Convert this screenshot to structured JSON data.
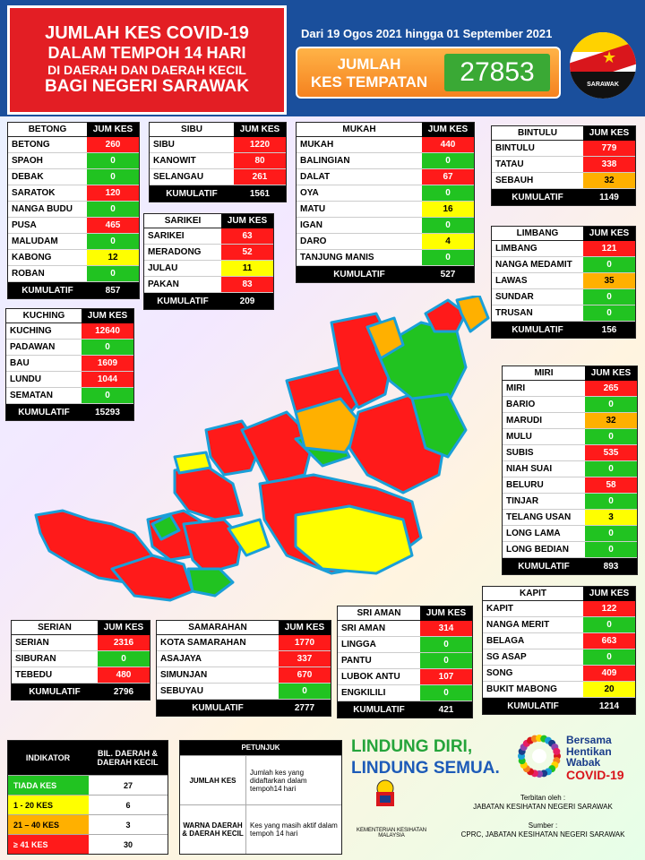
{
  "header": {
    "title_lines": [
      "JUMLAH KES COVID-19",
      "DALAM TEMPOH 14 HARI",
      "DI DAERAH DAN DAERAH KECIL",
      "BAGI NEGERI SARAWAK"
    ],
    "date_range": "Dari 19 Ogos 2021 hingga 01 September 2021",
    "jumlah_label_1": "JUMLAH",
    "jumlah_label_2": "KES TEMPATAN",
    "jumlah_value": "27853",
    "flag_label": "SARAWAK"
  },
  "tables": {
    "betong": {
      "title": "BETONG",
      "col": "JUM KES",
      "rows": [
        {
          "name": "BETONG",
          "value": "260",
          "color": "red"
        },
        {
          "name": "SPAOH",
          "value": "0",
          "color": "green"
        },
        {
          "name": "DEBAK",
          "value": "0",
          "color": "green"
        },
        {
          "name": "SARATOK",
          "value": "120",
          "color": "red"
        },
        {
          "name": "NANGA BUDU",
          "value": "0",
          "color": "green"
        },
        {
          "name": "PUSA",
          "value": "465",
          "color": "red"
        },
        {
          "name": "MALUDAM",
          "value": "0",
          "color": "green"
        },
        {
          "name": "KABONG",
          "value": "12",
          "color": "yellow"
        },
        {
          "name": "ROBAN",
          "value": "0",
          "color": "green"
        }
      ],
      "kum_label": "KUMULATIF",
      "kum": "857"
    },
    "sibu": {
      "title": "SIBU",
      "col": "JUM KES",
      "rows": [
        {
          "name": "SIBU",
          "value": "1220",
          "color": "red"
        },
        {
          "name": "KANOWIT",
          "value": "80",
          "color": "red"
        },
        {
          "name": "SELANGAU",
          "value": "261",
          "color": "red"
        }
      ],
      "kum_label": "KUMULATIF",
      "kum": "1561"
    },
    "mukah": {
      "title": "MUKAH",
      "col": "JUM KES",
      "rows": [
        {
          "name": "MUKAH",
          "value": "440",
          "color": "red"
        },
        {
          "name": "BALINGIAN",
          "value": "0",
          "color": "green"
        },
        {
          "name": "DALAT",
          "value": "67",
          "color": "red"
        },
        {
          "name": "OYA",
          "value": "0",
          "color": "green"
        },
        {
          "name": "MATU",
          "value": "16",
          "color": "yellow"
        },
        {
          "name": "IGAN",
          "value": "0",
          "color": "green"
        },
        {
          "name": "DARO",
          "value": "4",
          "color": "yellow"
        },
        {
          "name": "TANJUNG MANIS",
          "value": "0",
          "color": "green"
        }
      ],
      "kum_label": "KUMULATIF",
      "kum": "527"
    },
    "bintulu": {
      "title": "BINTULU",
      "col": "JUM KES",
      "rows": [
        {
          "name": "BINTULU",
          "value": "779",
          "color": "red"
        },
        {
          "name": "TATAU",
          "value": "338",
          "color": "red"
        },
        {
          "name": "SEBAUH",
          "value": "32",
          "color": "orange"
        }
      ],
      "kum_label": "KUMULATIF",
      "kum": "1149"
    },
    "sarikei": {
      "title": "SARIKEI",
      "col": "JUM KES",
      "rows": [
        {
          "name": "SARIKEI",
          "value": "63",
          "color": "red"
        },
        {
          "name": "MERADONG",
          "value": "52",
          "color": "red"
        },
        {
          "name": "JULAU",
          "value": "11",
          "color": "yellow"
        },
        {
          "name": "PAKAN",
          "value": "83",
          "color": "red"
        }
      ],
      "kum_label": "KUMULATIF",
      "kum": "209"
    },
    "limbang": {
      "title": "LIMBANG",
      "col": "JUM KES",
      "rows": [
        {
          "name": "LIMBANG",
          "value": "121",
          "color": "red"
        },
        {
          "name": "NANGA MEDAMIT",
          "value": "0",
          "color": "green"
        },
        {
          "name": "LAWAS",
          "value": "35",
          "color": "orange"
        },
        {
          "name": "SUNDAR",
          "value": "0",
          "color": "green"
        },
        {
          "name": "TRUSAN",
          "value": "0",
          "color": "green"
        }
      ],
      "kum_label": "KUMULATIF",
      "kum": "156"
    },
    "kuching": {
      "title": "KUCHING",
      "col": "JUM KES",
      "rows": [
        {
          "name": "KUCHING",
          "value": "12640",
          "color": "red"
        },
        {
          "name": "PADAWAN",
          "value": "0",
          "color": "green"
        },
        {
          "name": "BAU",
          "value": "1609",
          "color": "red"
        },
        {
          "name": "LUNDU",
          "value": "1044",
          "color": "red"
        },
        {
          "name": "SEMATAN",
          "value": "0",
          "color": "green"
        }
      ],
      "kum_label": "KUMULATIF",
      "kum": "15293"
    },
    "miri": {
      "title": "MIRI",
      "col": "JUM KES",
      "rows": [
        {
          "name": "MIRI",
          "value": "265",
          "color": "red"
        },
        {
          "name": "BARIO",
          "value": "0",
          "color": "green"
        },
        {
          "name": "MARUDI",
          "value": "32",
          "color": "orange"
        },
        {
          "name": "MULU",
          "value": "0",
          "color": "green"
        },
        {
          "name": "SUBIS",
          "value": "535",
          "color": "red"
        },
        {
          "name": "NIAH SUAI",
          "value": "0",
          "color": "green"
        },
        {
          "name": "BELURU",
          "value": "58",
          "color": "red"
        },
        {
          "name": "TINJAR",
          "value": "0",
          "color": "green"
        },
        {
          "name": "TELANG USAN",
          "value": "3",
          "color": "yellow"
        },
        {
          "name": "LONG LAMA",
          "value": "0",
          "color": "green"
        },
        {
          "name": "LONG BEDIAN",
          "value": "0",
          "color": "green"
        }
      ],
      "kum_label": "KUMULATIF",
      "kum": "893"
    },
    "kapit": {
      "title": "KAPIT",
      "col": "JUM KES",
      "rows": [
        {
          "name": "KAPIT",
          "value": "122",
          "color": "red"
        },
        {
          "name": "NANGA MERIT",
          "value": "0",
          "color": "green"
        },
        {
          "name": "BELAGA",
          "value": "663",
          "color": "red"
        },
        {
          "name": "SG ASAP",
          "value": "0",
          "color": "green"
        },
        {
          "name": "SONG",
          "value": "409",
          "color": "red"
        },
        {
          "name": "BUKIT MABONG",
          "value": "20",
          "color": "yellow"
        }
      ],
      "kum_label": "KUMULATIF",
      "kum": "1214"
    },
    "sriaman": {
      "title": "SRI AMAN",
      "col": "JUM KES",
      "rows": [
        {
          "name": "SRI AMAN",
          "value": "314",
          "color": "red"
        },
        {
          "name": "LINGGA",
          "value": "0",
          "color": "green"
        },
        {
          "name": "PANTU",
          "value": "0",
          "color": "green"
        },
        {
          "name": "LUBOK ANTU",
          "value": "107",
          "color": "red"
        },
        {
          "name": "ENGKILILI",
          "value": "0",
          "color": "green"
        }
      ],
      "kum_label": "KUMULATIF",
      "kum": "421"
    },
    "serian": {
      "title": "SERIAN",
      "col": "JUM KES",
      "rows": [
        {
          "name": "SERIAN",
          "value": "2316",
          "color": "red"
        },
        {
          "name": "SIBURAN",
          "value": "0",
          "color": "green"
        },
        {
          "name": "TEBEDU",
          "value": "480",
          "color": "red"
        }
      ],
      "kum_label": "KUMULATIF",
      "kum": "2796"
    },
    "samarahan": {
      "title": "SAMARAHAN",
      "col": "JUM KES",
      "rows": [
        {
          "name": "KOTA SAMARAHAN",
          "value": "1770",
          "color": "red"
        },
        {
          "name": "ASAJAYA",
          "value": "337",
          "color": "red"
        },
        {
          "name": "SIMUNJAN",
          "value": "670",
          "color": "red"
        },
        {
          "name": "SEBUYAU",
          "value": "0",
          "color": "green"
        }
      ],
      "kum_label": "KUMULATIF",
      "kum": "2777"
    }
  },
  "legend_indicator": {
    "h1": "INDIKATOR",
    "h2": "BIL. DAERAH & DAERAH KECIL",
    "rows": [
      {
        "label": "TIADA KES",
        "count": "27",
        "color": "green"
      },
      {
        "label": "1 - 20 KES",
        "count": "6",
        "color": "yellow"
      },
      {
        "label": "21 – 40 KES",
        "count": "3",
        "color": "orange"
      },
      {
        "label": "≥ 41 KES",
        "count": "30",
        "color": "red"
      }
    ]
  },
  "legend_petunjuk": {
    "title": "PETUNJUK",
    "rows": [
      {
        "a": "JUMLAH KES",
        "b": "Jumlah kes yang didaftarkan dalam tempoh14 hari"
      },
      {
        "a": "WARNA DAERAH & DAERAH KECIL",
        "b": "Kes yang masih aktif dalam tempoh 14 hari"
      }
    ]
  },
  "slogan": {
    "l1": "LINDUNG DIRI,",
    "l2": "LINDUNG SEMUA."
  },
  "covid": {
    "l1": "Bersama",
    "l2": "Hentikan",
    "l3": "Wabak",
    "l4": "COVID-19"
  },
  "kkm": "KEMENTERIAN KESIHATAN MALAYSIA",
  "pub": {
    "l1": "Terbitan oleh :",
    "l2": "JABATAN KESIHATAN NEGERI SARAWAK",
    "l3": "Sumber :",
    "l4": "CPRC, JABATAN KESIHATAN NEGERI SARAWAK"
  },
  "colors": {
    "red": "#ff1a1a",
    "green": "#21c321",
    "yellow": "#ffff00",
    "orange": "#ffb000"
  }
}
